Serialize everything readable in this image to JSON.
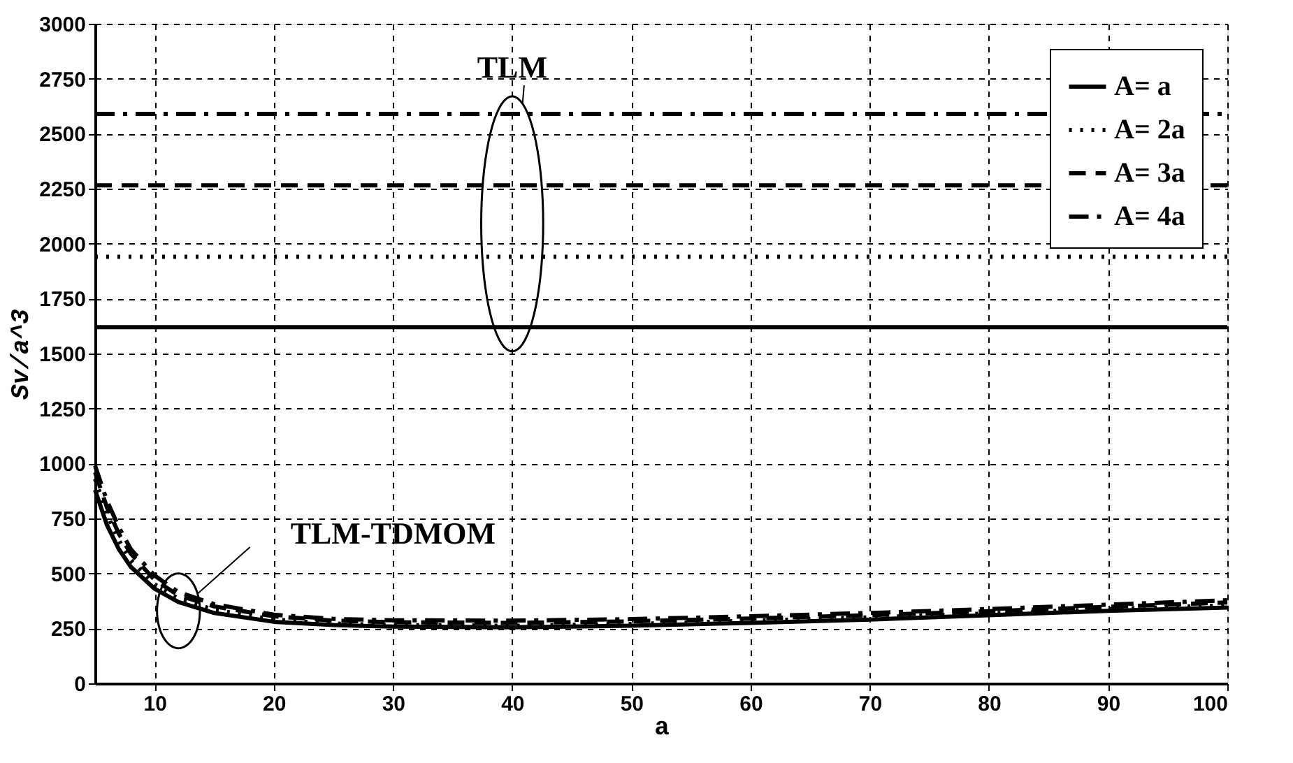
{
  "chart_data": {
    "type": "line",
    "xlabel": "a",
    "ylabel": "Sv/a^3",
    "xlim": [
      5,
      100
    ],
    "xticks": [
      10,
      20,
      30,
      40,
      50,
      60,
      70,
      80,
      90,
      100
    ],
    "ylim": [
      0,
      3000
    ],
    "yticks": [
      0,
      250,
      500,
      750,
      1000,
      1250,
      1500,
      1750,
      2000,
      2250,
      2500,
      2750,
      3000
    ],
    "grid": true,
    "legend": "top right",
    "marker": "none",
    "annotations": [
      "TLM",
      "TLM-TDMOM"
    ],
    "series": [
      {
        "name": "A= a",
        "color": "#000000",
        "line_style": "solid",
        "x": [
          5,
          6,
          7,
          8,
          10,
          12,
          15,
          20,
          25,
          30,
          40,
          50,
          60,
          70,
          80,
          90,
          100
        ],
        "values": [
          880,
          720,
          610,
          530,
          430,
          370,
          320,
          280,
          265,
          258,
          255,
          262,
          275,
          290,
          310,
          330,
          345
        ]
      },
      {
        "name": "A= 2a",
        "color": "#000000",
        "line_style": "dotted",
        "x": [
          5,
          6,
          7,
          8,
          10,
          12,
          15,
          20,
          25,
          30,
          40,
          50,
          60,
          70,
          80,
          90,
          100
        ],
        "values": [
          930,
          770,
          650,
          560,
          450,
          385,
          335,
          290,
          272,
          265,
          262,
          270,
          285,
          300,
          318,
          338,
          355
        ]
      },
      {
        "name": "A= 3a",
        "color": "#000000",
        "line_style": "dashed",
        "x": [
          5,
          6,
          7,
          8,
          10,
          12,
          15,
          20,
          25,
          30,
          40,
          50,
          60,
          70,
          80,
          90,
          100
        ],
        "values": [
          960,
          800,
          680,
          590,
          470,
          400,
          350,
          305,
          285,
          278,
          275,
          282,
          295,
          310,
          328,
          348,
          368
        ]
      },
      {
        "name": "A= 4a",
        "color": "#000000",
        "line_style": "dashdot",
        "x": [
          5,
          6,
          7,
          8,
          10,
          12,
          15,
          20,
          25,
          30,
          40,
          50,
          60,
          70,
          80,
          90,
          100
        ],
        "values": [
          990,
          830,
          710,
          610,
          490,
          415,
          360,
          312,
          293,
          287,
          285,
          292,
          305,
          320,
          338,
          358,
          378
        ]
      },
      {
        "color": "#000000",
        "line_style": "solid",
        "x": [
          5,
          100
        ],
        "values": [
          1620,
          1620
        ]
      },
      {
        "color": "#000000",
        "line_style": "dotted",
        "x": [
          5,
          100
        ],
        "values": [
          1940,
          1940
        ]
      },
      {
        "color": "#000000",
        "line_style": "dashed",
        "x": [
          5,
          100
        ],
        "values": [
          2265,
          2265
        ]
      },
      {
        "color": "#000000",
        "line_style": "dashdot",
        "x": [
          5,
          100
        ],
        "values": [
          2590,
          2590
        ]
      }
    ]
  }
}
